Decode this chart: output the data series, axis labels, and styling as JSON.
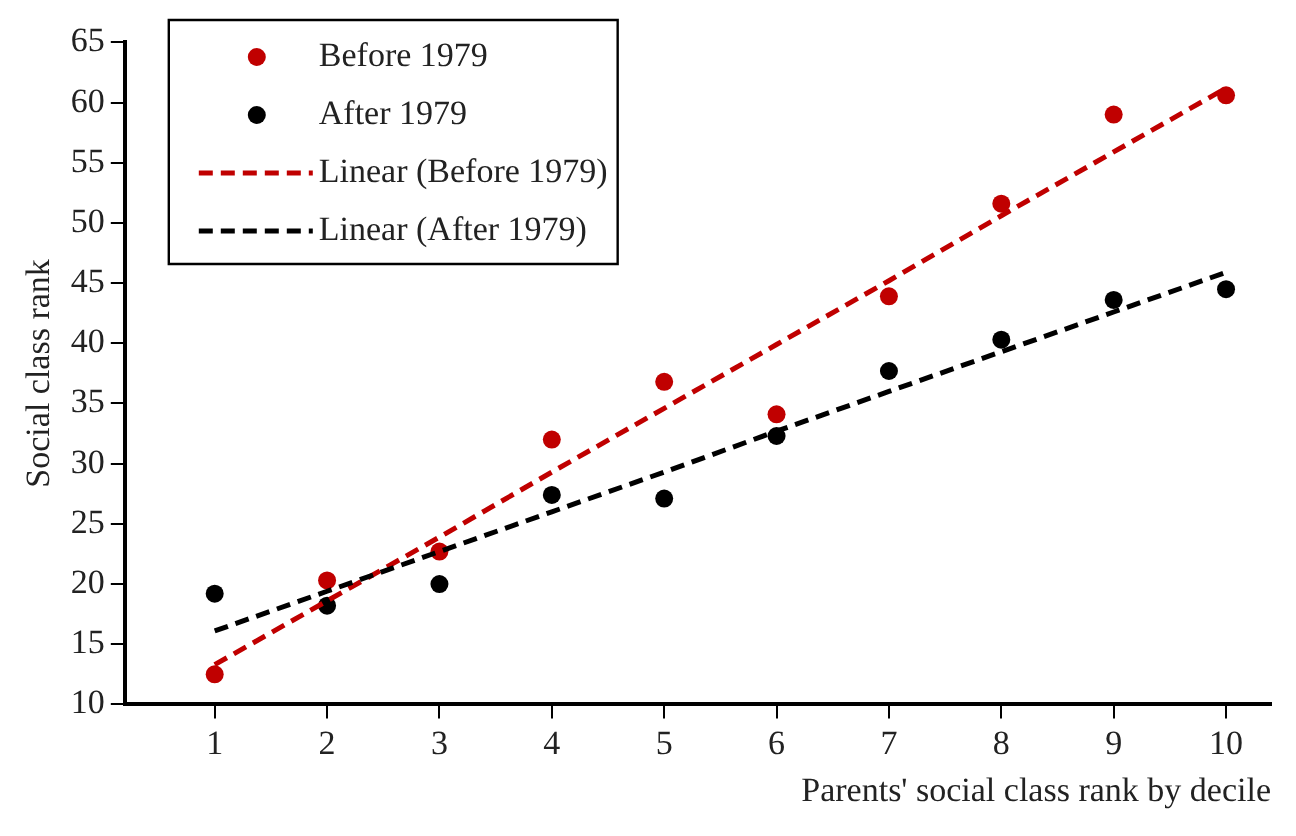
{
  "chart_data": {
    "type": "scatter",
    "xlabel": "Parents' social class rank by decile",
    "ylabel": "Social class rank",
    "x": [
      1,
      2,
      3,
      4,
      5,
      6,
      7,
      8,
      9,
      10
    ],
    "series": [
      {
        "name": "Before 1979",
        "marker": "circle",
        "color": "#c00000",
        "values": [
          12.5,
          20.3,
          22.7,
          32.0,
          36.8,
          34.1,
          43.9,
          51.6,
          59.0,
          60.6
        ]
      },
      {
        "name": "After 1979",
        "marker": "circle",
        "color": "#000000",
        "values": [
          19.2,
          18.2,
          20.0,
          27.4,
          27.1,
          32.3,
          37.7,
          40.3,
          43.6,
          44.5
        ]
      },
      {
        "name": "Linear (Before 1979)",
        "type": "line",
        "line_style": "dashed",
        "marker": "none",
        "color": "#c00000",
        "values": [
          13.3,
          18.6,
          23.9,
          29.3,
          34.6,
          39.9,
          45.2,
          50.6,
          55.9,
          61.2
        ]
      },
      {
        "name": "Linear (After 1979)",
        "type": "line",
        "line_style": "dashed",
        "marker": "none",
        "color": "#000000",
        "values": [
          16.1,
          19.4,
          22.7,
          26.0,
          29.3,
          32.7,
          36.0,
          39.3,
          42.6,
          45.9
        ]
      }
    ],
    "xlim": [
      0.2,
      10.4
    ],
    "xticks": [
      1,
      2,
      3,
      4,
      5,
      6,
      7,
      8,
      9,
      10
    ],
    "ylim": [
      10,
      65
    ],
    "yticks": [
      10,
      15,
      20,
      25,
      30,
      35,
      40,
      45,
      50,
      55,
      60,
      65
    ],
    "grid": false,
    "legend": "top left"
  }
}
